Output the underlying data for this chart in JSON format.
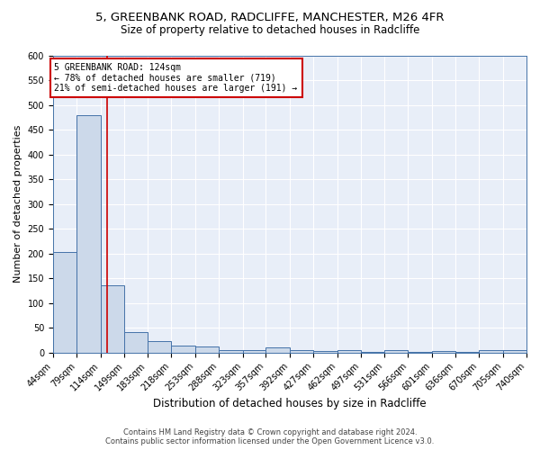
{
  "title1": "5, GREENBANK ROAD, RADCLIFFE, MANCHESTER, M26 4FR",
  "title2": "Size of property relative to detached houses in Radcliffe",
  "xlabel": "Distribution of detached houses by size in Radcliffe",
  "ylabel": "Number of detached properties",
  "bar_edges": [
    44,
    79,
    114,
    149,
    183,
    218,
    253,
    288,
    323,
    357,
    392,
    427,
    462,
    497,
    531,
    566,
    601,
    636,
    670,
    705,
    740
  ],
  "bar_heights": [
    203,
    480,
    135,
    42,
    23,
    15,
    12,
    5,
    6,
    10,
    5,
    4,
    5,
    1,
    5,
    1,
    4,
    1,
    6,
    5
  ],
  "bar_color": "#ccd9ea",
  "bar_edge_color": "#4472a8",
  "property_line_x": 124,
  "property_line_color": "#cc0000",
  "annotation_text": "5 GREENBANK ROAD: 124sqm\n← 78% of detached houses are smaller (719)\n21% of semi-detached houses are larger (191) →",
  "annotation_box_color": "#ffffff",
  "annotation_box_edge": "#cc0000",
  "ylim": [
    0,
    600
  ],
  "yticks": [
    0,
    50,
    100,
    150,
    200,
    250,
    300,
    350,
    400,
    450,
    500,
    550,
    600
  ],
  "background_color": "#e8eef8",
  "grid_color": "#ffffff",
  "footer1": "Contains HM Land Registry data © Crown copyright and database right 2024.",
  "footer2": "Contains public sector information licensed under the Open Government Licence v3.0.",
  "title1_fontsize": 9.5,
  "title2_fontsize": 8.5,
  "xlabel_fontsize": 8.5,
  "ylabel_fontsize": 8,
  "tick_fontsize": 7,
  "footer_fontsize": 6,
  "annot_fontsize": 7
}
